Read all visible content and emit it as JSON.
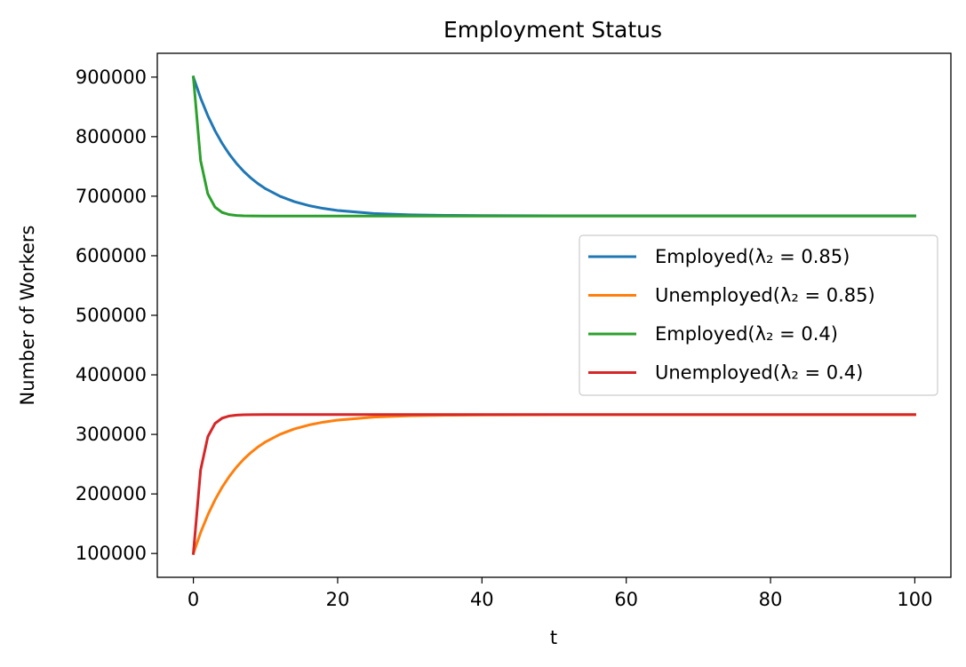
{
  "chart_data": {
    "type": "line",
    "title": "Employment Status",
    "xlabel": "t",
    "ylabel": "Number of Workers",
    "xlim": [
      -5,
      105
    ],
    "ylim": [
      60000,
      940000
    ],
    "xticks": [
      0,
      20,
      40,
      60,
      80,
      100
    ],
    "xtick_labels": [
      "0",
      "20",
      "40",
      "60",
      "80",
      "100"
    ],
    "yticks": [
      100000,
      200000,
      300000,
      400000,
      500000,
      600000,
      700000,
      800000,
      900000
    ],
    "ytick_labels": [
      "100000",
      "200000",
      "300000",
      "400000",
      "500000",
      "600000",
      "700000",
      "800000",
      "900000"
    ],
    "grid": false,
    "legend_position": "center-right",
    "series": [
      {
        "name": "Employed(λ₂ = 0.85)",
        "color": "#1f77b4",
        "x": [
          0,
          1,
          2,
          3,
          4,
          5,
          6,
          7,
          8,
          9,
          10,
          12,
          14,
          16,
          18,
          20,
          25,
          30,
          35,
          40,
          50,
          60,
          70,
          80,
          90,
          100
        ],
        "y": [
          900000,
          865000,
          835250,
          809963,
          788468,
          770198,
          754668,
          741468,
          730248,
          720711,
          712604,
          699968,
          690836,
          684237,
          679469,
          676024,
          671019,
          668799,
          667814,
          667377,
          667068,
          667007,
          666995,
          666993,
          666992,
          666992
        ]
      },
      {
        "name": "Unemployed(λ₂ = 0.85)",
        "color": "#ff7f0e",
        "x": [
          0,
          1,
          2,
          3,
          4,
          5,
          6,
          7,
          8,
          9,
          10,
          12,
          14,
          16,
          18,
          20,
          25,
          30,
          35,
          40,
          50,
          60,
          70,
          80,
          90,
          100
        ],
        "y": [
          100000,
          135000,
          164750,
          190037,
          211532,
          229802,
          245332,
          258532,
          269752,
          279289,
          287396,
          300032,
          309164,
          315763,
          320531,
          323976,
          328981,
          331201,
          332186,
          332623,
          332932,
          332993,
          333005,
          333007,
          333008,
          333008
        ]
      },
      {
        "name": "Employed(λ₂ = 0.4)",
        "color": "#2ca02c",
        "x": [
          0,
          1,
          2,
          3,
          4,
          5,
          6,
          7,
          8,
          10,
          15,
          20,
          30,
          40,
          50,
          60,
          70,
          80,
          90,
          100
        ],
        "y": [
          900000,
          760000,
          704000,
          681600,
          672640,
          669056,
          667622,
          667049,
          666820,
          666704,
          666667,
          666667,
          666667,
          666667,
          666667,
          666667,
          666667,
          666667,
          666667,
          666667
        ]
      },
      {
        "name": "Unemployed(λ₂ = 0.4)",
        "color": "#d62728",
        "x": [
          0,
          1,
          2,
          3,
          4,
          5,
          6,
          7,
          8,
          10,
          15,
          20,
          30,
          40,
          50,
          60,
          70,
          80,
          90,
          100
        ],
        "y": [
          100000,
          240000,
          296000,
          318400,
          327360,
          330944,
          332378,
          332951,
          333180,
          333296,
          333333,
          333333,
          333333,
          333333,
          333333,
          333333,
          333333,
          333333,
          333333,
          333333
        ]
      }
    ]
  }
}
